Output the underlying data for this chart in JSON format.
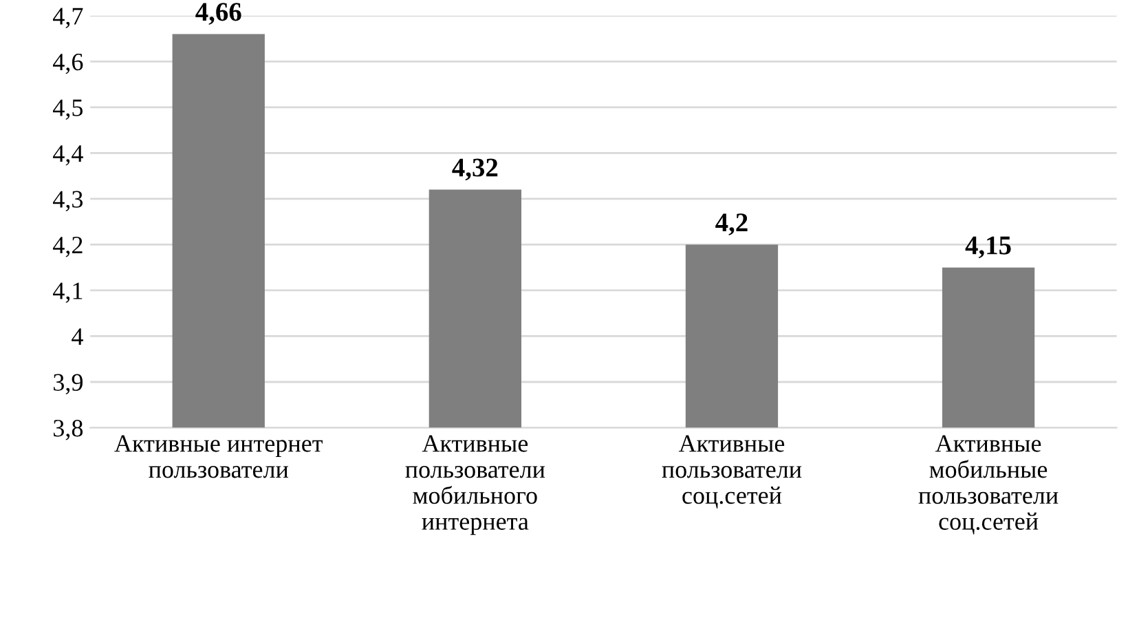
{
  "chart_data": {
    "type": "bar",
    "categories": [
      "Активные интернет\nпользователи",
      "Активные\nпользователи\nмобильного\nинтернета",
      "Активные\nпользователи\nсоц.сетей",
      "Активные\nмобильные\nпользователи\nсоц.сетей"
    ],
    "values": [
      4.66,
      4.32,
      4.2,
      4.15
    ],
    "value_labels": [
      "4,66",
      "4,32",
      "4,2",
      "4,15"
    ],
    "color": "#7f7f7f",
    "ylim": [
      3.8,
      4.7
    ],
    "yticks": [
      {
        "value": 3.8,
        "label": "3,8"
      },
      {
        "value": 3.9,
        "label": "3,9"
      },
      {
        "value": 4,
        "label": "4"
      },
      {
        "value": 4.1,
        "label": "4,1"
      },
      {
        "value": 4.2,
        "label": "4,2"
      },
      {
        "value": 4.3,
        "label": "4,3"
      },
      {
        "value": 4.4,
        "label": "4,4"
      },
      {
        "value": 4.5,
        "label": "4,5"
      },
      {
        "value": 4.6,
        "label": "4,6"
      },
      {
        "value": 4.7,
        "label": "4,7"
      }
    ],
    "grid": "y",
    "legend": false
  }
}
